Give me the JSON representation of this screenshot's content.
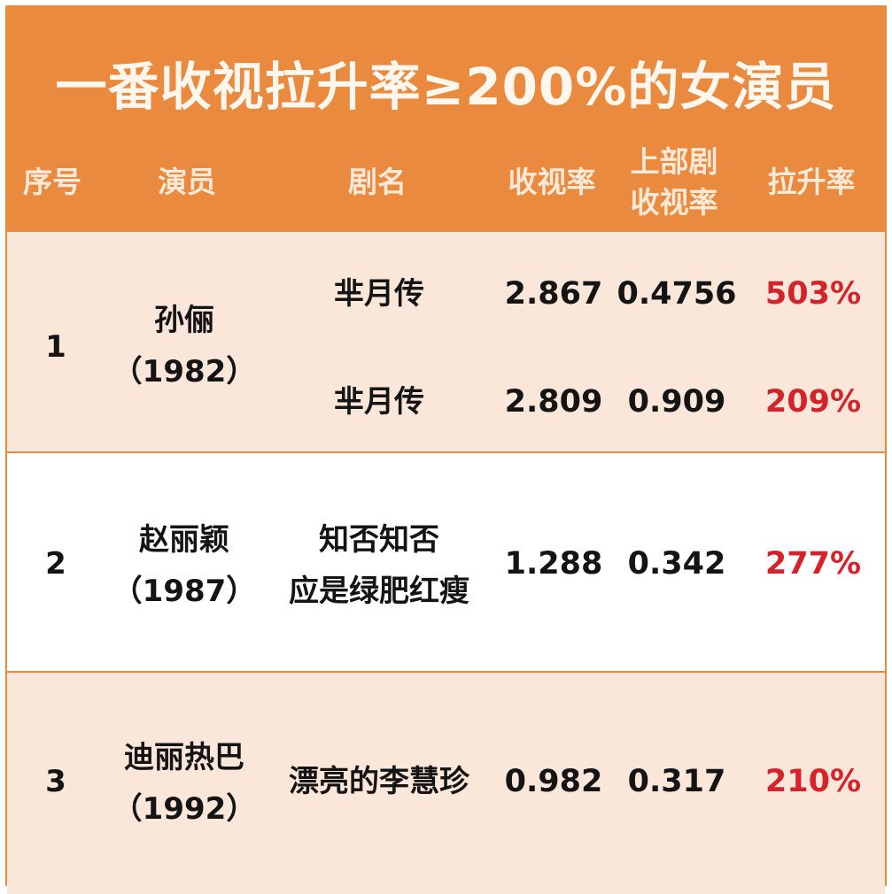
{
  "colors": {
    "header_bg": "#e98a3e",
    "title_text": "#fff6ee",
    "header_text": "#fde9d8",
    "row_tint": "#fbe6da",
    "row_plain": "#ffffff",
    "rate_red": "#d4232b",
    "body_text": "#141414"
  },
  "chart_data": {
    "type": "table",
    "title": "一番收视拉升率≥200%的女演员",
    "columns": [
      "序号",
      "演员",
      "剧名",
      "收视率",
      "上部剧\n收视率",
      "拉升率"
    ],
    "column_labels": {
      "index": "序号",
      "actress": "演员",
      "drama": "剧名",
      "rating": "收视率",
      "prev_rating_line1": "上部剧",
      "prev_rating_line2": "收视率",
      "rise": "拉升率"
    },
    "rows": [
      {
        "index": "1",
        "actress": "孙俪",
        "birth": "（1982）",
        "entries": [
          {
            "drama": "芈月传",
            "rating": "2.867",
            "prev_rating": "0.4756",
            "rise": "503%"
          },
          {
            "drama": "芈月传",
            "rating": "2.809",
            "prev_rating": "0.909",
            "rise": "209%"
          }
        ]
      },
      {
        "index": "2",
        "actress": "赵丽颖",
        "birth": "（1987）",
        "entries": [
          {
            "drama_line1": "知否知否",
            "drama_line2": "应是绿肥红瘦",
            "rating": "1.288",
            "prev_rating": "0.342",
            "rise": "277%"
          }
        ]
      },
      {
        "index": "3",
        "actress": "迪丽热巴",
        "birth": "（1992）",
        "entries": [
          {
            "drama": "漂亮的李慧珍",
            "rating": "0.982",
            "prev_rating": "0.317",
            "rise": "210%"
          }
        ]
      }
    ]
  }
}
